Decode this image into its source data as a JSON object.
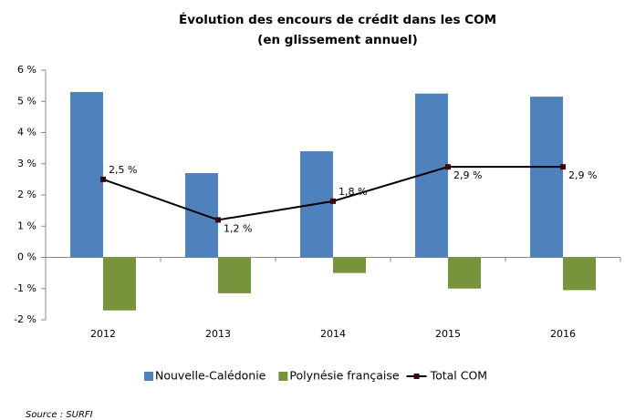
{
  "chart_data": {
    "type": "bar_line",
    "title": [
      "Évolution des encours de crédit dans les COM",
      "(en glissement annuel)"
    ],
    "categories": [
      "2012",
      "2013",
      "2014",
      "2015",
      "2016"
    ],
    "series": [
      {
        "name": "Nouvelle-Calédonie",
        "color": "#4f81bd",
        "type": "bar",
        "values": [
          5.3,
          2.7,
          3.4,
          5.25,
          5.15
        ]
      },
      {
        "name": "Polynésie française",
        "color": "#77933c",
        "type": "bar",
        "values": [
          -1.7,
          -1.15,
          -0.5,
          -1.0,
          -1.05
        ]
      },
      {
        "name": "Total COM",
        "color": "#000000",
        "type": "line",
        "values": [
          2.5,
          1.2,
          1.8,
          2.9,
          2.9
        ],
        "value_labels": [
          "2,5 %",
          "1,2 %",
          "1,8 %",
          "2,9 %",
          "2,9 %"
        ]
      }
    ],
    "ylim": [
      -2,
      6
    ],
    "yticks": [
      {
        "value": -2,
        "label": "-2 %"
      },
      {
        "value": -1,
        "label": "-1 %"
      },
      {
        "value": 0,
        "label": "0 %"
      },
      {
        "value": 1,
        "label": "1 %"
      },
      {
        "value": 2,
        "label": "2 %"
      },
      {
        "value": 3,
        "label": "3 %"
      },
      {
        "value": 4,
        "label": "4 %"
      },
      {
        "value": 5,
        "label": "5 %"
      },
      {
        "value": 6,
        "label": "6 %"
      }
    ],
    "grid": false,
    "legend": "bottom",
    "source": "Source : SURFI"
  }
}
